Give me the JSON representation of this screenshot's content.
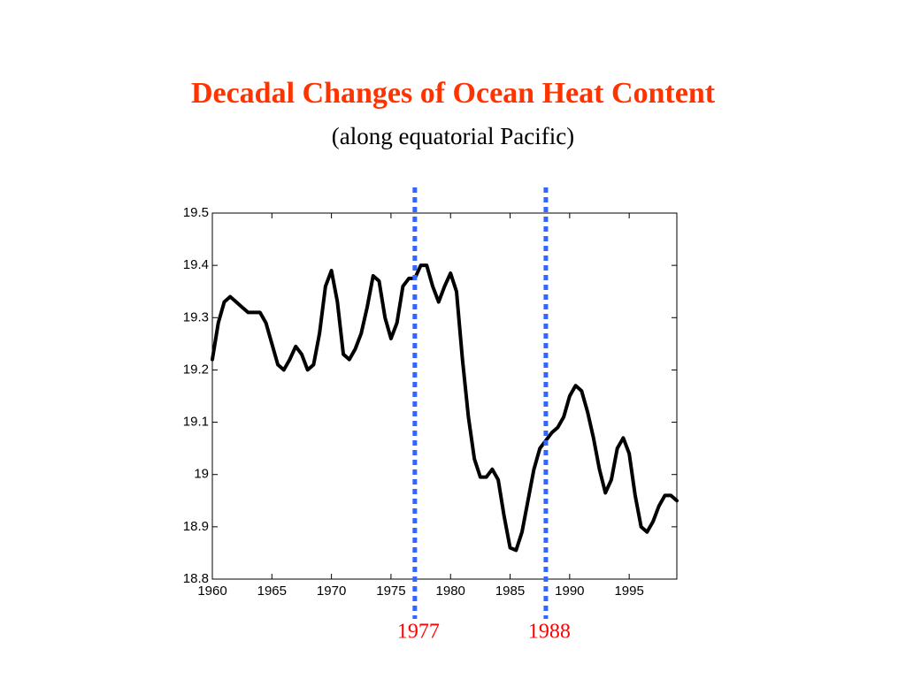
{
  "chart_data": {
    "type": "line",
    "title": "Decadal Changes of Ocean Heat Content",
    "subtitle": "(along equatorial Pacific)",
    "x": [
      1960,
      1960.5,
      1961,
      1961.5,
      1962,
      1962.5,
      1963,
      1963.5,
      1964,
      1964.5,
      1965,
      1965.5,
      1966,
      1966.5,
      1967,
      1967.5,
      1968,
      1968.5,
      1969,
      1969.5,
      1970,
      1970.5,
      1971,
      1971.5,
      1972,
      1972.5,
      1973,
      1973.5,
      1974,
      1974.5,
      1975,
      1975.5,
      1976,
      1976.5,
      1977,
      1977.5,
      1978,
      1978.5,
      1979,
      1979.5,
      1980,
      1980.5,
      1981,
      1981.5,
      1982,
      1982.5,
      1983,
      1983.5,
      1984,
      1984.5,
      1985,
      1985.5,
      1986,
      1986.5,
      1987,
      1987.5,
      1988,
      1988.5,
      1989,
      1989.5,
      1990,
      1990.5,
      1991,
      1991.5,
      1992,
      1992.5,
      1993,
      1993.5,
      1994,
      1994.5,
      1995,
      1995.5,
      1996,
      1996.5,
      1997,
      1997.5,
      1998,
      1998.5,
      1999
    ],
    "values": [
      19.22,
      19.29,
      19.33,
      19.34,
      19.33,
      19.32,
      19.31,
      19.31,
      19.31,
      19.29,
      19.25,
      19.21,
      19.2,
      19.22,
      19.245,
      19.23,
      19.2,
      19.21,
      19.27,
      19.36,
      19.39,
      19.33,
      19.23,
      19.22,
      19.24,
      19.27,
      19.32,
      19.38,
      19.37,
      19.3,
      19.26,
      19.29,
      19.36,
      19.375,
      19.375,
      19.4,
      19.4,
      19.36,
      19.33,
      19.36,
      19.385,
      19.35,
      19.22,
      19.11,
      19.03,
      18.995,
      18.995,
      19.01,
      18.99,
      18.92,
      18.86,
      18.855,
      18.89,
      18.95,
      19.01,
      19.05,
      19.065,
      19.08,
      19.09,
      19.11,
      19.15,
      19.17,
      19.16,
      19.12,
      19.07,
      19.01,
      18.965,
      18.99,
      19.05,
      19.07,
      19.04,
      18.96,
      18.9,
      18.89,
      18.91,
      18.94,
      18.96,
      18.96,
      18.95
    ],
    "color": "#000000",
    "xlim": [
      1960,
      1999
    ],
    "xticks": [
      1960,
      1965,
      1970,
      1975,
      1980,
      1985,
      1990,
      1995
    ],
    "ylim": [
      18.8,
      19.5
    ],
    "yticks": [
      18.8,
      18.9,
      19,
      19.1,
      19.2,
      19.3,
      19.4,
      19.5
    ],
    "vlines": [
      1977,
      1988
    ],
    "vline_color": "#3366ff"
  }
}
